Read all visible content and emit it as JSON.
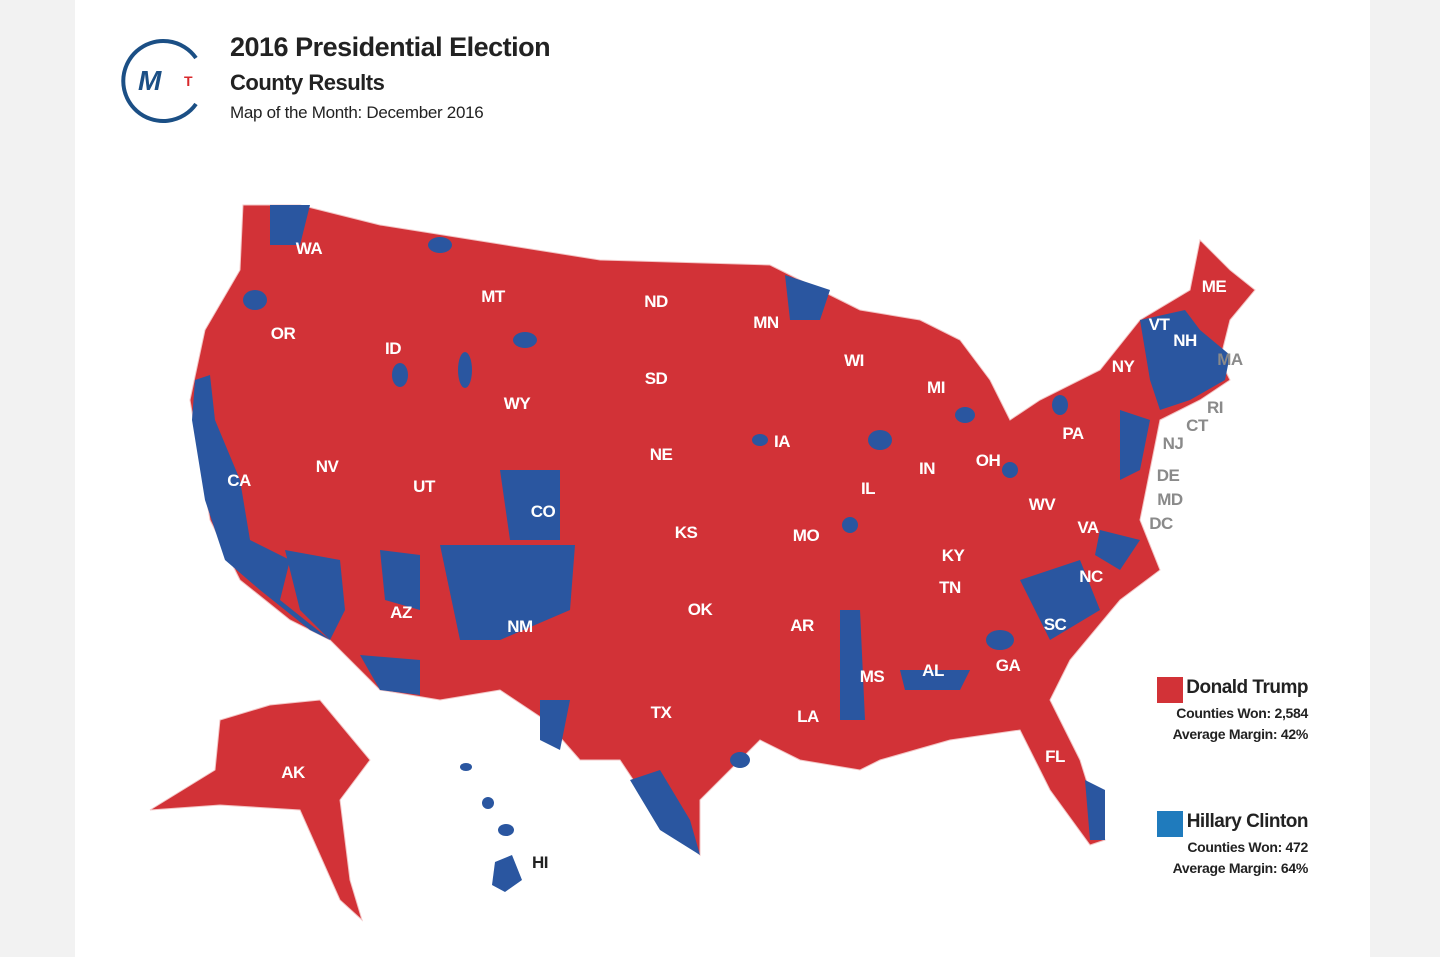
{
  "header": {
    "title": "2016 Presidential Election",
    "subtitle": "County Results",
    "tagline": "Map of the Month: December 2016",
    "logo_text": "MT"
  },
  "colors": {
    "trump": "#d23237",
    "clinton_map": "#2a56a0",
    "clinton_legend": "#1f7bbd",
    "logo_blue": "#1b4f85",
    "logo_red": "#d8282c"
  },
  "states": [
    "WA",
    "OR",
    "CA",
    "ID",
    "NV",
    "MT",
    "WY",
    "UT",
    "AZ",
    "CO",
    "NM",
    "ND",
    "SD",
    "NE",
    "KS",
    "OK",
    "TX",
    "MN",
    "IA",
    "MO",
    "AR",
    "LA",
    "WI",
    "IL",
    "MI",
    "IN",
    "OH",
    "KY",
    "TN",
    "MS",
    "AL",
    "GA",
    "FL",
    "SC",
    "NC",
    "VA",
    "WV",
    "PA",
    "NY",
    "VT",
    "NH",
    "ME",
    "MA",
    "RI",
    "CT",
    "NJ",
    "DE",
    "MD",
    "DC",
    "AK",
    "HI"
  ],
  "legend": [
    {
      "candidate": "Donald Trump",
      "counties": "Counties Won: 2,584",
      "margin": "Average Margin: 42%"
    },
    {
      "candidate": "Hillary Clinton",
      "counties": "Counties Won: 472",
      "margin": "Average Margin: 64%"
    }
  ]
}
